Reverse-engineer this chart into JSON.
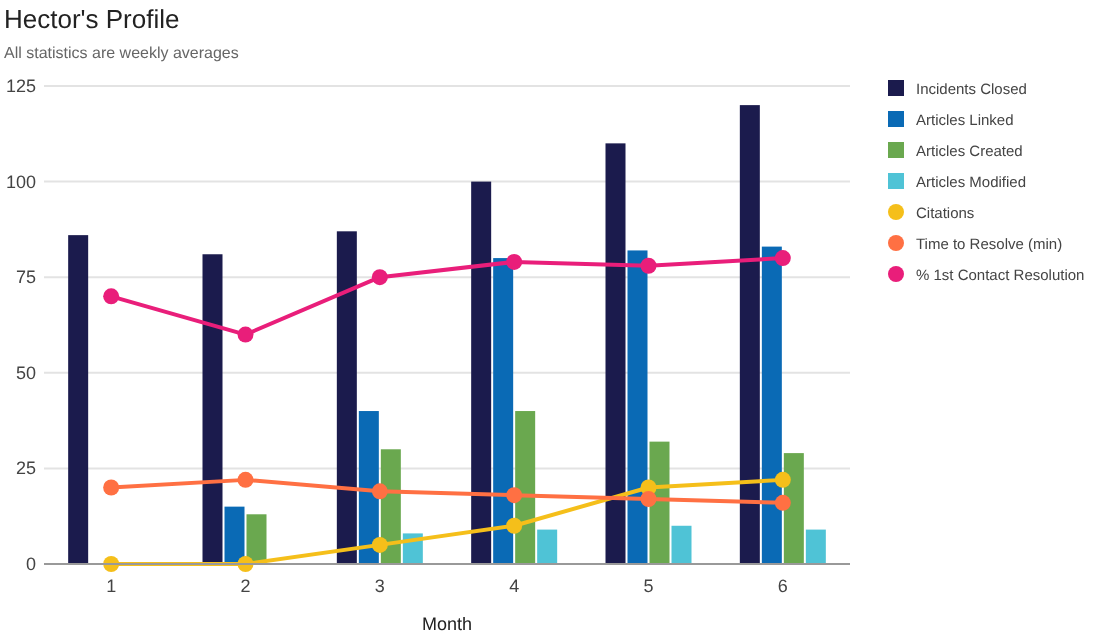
{
  "chart_data": {
    "type": "bar",
    "title": "Hector's Profile",
    "subtitle": "All statistics are weekly averages",
    "xlabel": "Month",
    "categories": [
      "1",
      "2",
      "3",
      "4",
      "5",
      "6"
    ],
    "series": [
      {
        "name": "Incidents Closed",
        "color": "#1b1b4d",
        "values": [
          86,
          81,
          87,
          100,
          110,
          120
        ]
      },
      {
        "name": "Articles Linked",
        "color": "#0a6ab5",
        "values": [
          0,
          15,
          40,
          80,
          82,
          83
        ]
      },
      {
        "name": "Articles Created",
        "color": "#6aa84f",
        "values": [
          0,
          13,
          30,
          40,
          32,
          29
        ]
      },
      {
        "name": "Articles Modified",
        "color": "#4fc3d6",
        "values": [
          0,
          0,
          8,
          9,
          10,
          9
        ]
      },
      {
        "name": "Citations",
        "type": "line",
        "color": "#f5bf1a",
        "values": [
          0,
          0,
          5,
          10,
          20,
          22
        ]
      },
      {
        "name": "Time to Resolve (min)",
        "type": "line",
        "color": "#ff7043",
        "values": [
          20,
          22,
          19,
          18,
          17,
          16
        ]
      },
      {
        "name": "% 1st Contact Resolution",
        "type": "line",
        "color": "#e91e7a",
        "values": [
          70,
          60,
          75,
          79,
          78,
          80
        ]
      }
    ],
    "ylim": [
      0,
      125
    ],
    "yticks": [
      0,
      25,
      50,
      75,
      100,
      125
    ],
    "grid": "y",
    "legend": "right",
    "marker": "circle"
  }
}
